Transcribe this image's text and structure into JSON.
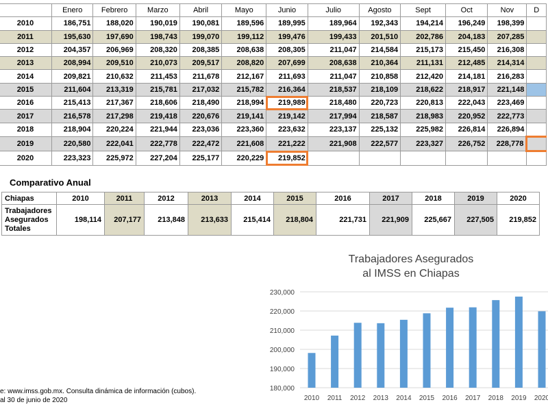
{
  "monthly": {
    "header": [
      "",
      "Enero",
      "Febrero",
      "Marzo",
      "Abril",
      "Mayo",
      "Junio",
      "Julio",
      "Agosto",
      "Sept",
      "Oct",
      "Nov",
      "D"
    ],
    "rows": [
      {
        "year": "2010",
        "values": [
          "186,751",
          "188,020",
          "190,019",
          "190,081",
          "189,596",
          "189,995",
          "189,964",
          "192,343",
          "194,214",
          "196,249",
          "198,399",
          ""
        ]
      },
      {
        "year": "2011",
        "values": [
          "195,630",
          "197,690",
          "198,743",
          "199,070",
          "199,112",
          "199,476",
          "199,433",
          "201,510",
          "202,786",
          "204,183",
          "207,285",
          ""
        ]
      },
      {
        "year": "2012",
        "values": [
          "204,357",
          "206,969",
          "208,320",
          "208,385",
          "208,638",
          "208,305",
          "211,047",
          "214,584",
          "215,173",
          "215,450",
          "216,308",
          ""
        ]
      },
      {
        "year": "2013",
        "values": [
          "208,994",
          "209,510",
          "210,073",
          "209,517",
          "208,820",
          "207,699",
          "208,638",
          "210,364",
          "211,131",
          "212,485",
          "214,314",
          ""
        ]
      },
      {
        "year": "2014",
        "values": [
          "209,821",
          "210,632",
          "211,453",
          "211,678",
          "212,167",
          "211,693",
          "211,047",
          "210,858",
          "212,420",
          "214,181",
          "216,283",
          ""
        ]
      },
      {
        "year": "2015",
        "values": [
          "211,604",
          "213,319",
          "215,781",
          "217,032",
          "215,782",
          "216,364",
          "218,537",
          "218,109",
          "218,622",
          "218,917",
          "221,148",
          ""
        ]
      },
      {
        "year": "2016",
        "values": [
          "215,413",
          "217,367",
          "218,606",
          "218,490",
          "218,994",
          "219,989",
          "218,480",
          "220,723",
          "220,813",
          "222,043",
          "223,469",
          ""
        ]
      },
      {
        "year": "2017",
        "values": [
          "216,578",
          "217,298",
          "219,418",
          "220,676",
          "219,141",
          "219,142",
          "217,994",
          "218,587",
          "218,983",
          "220,952",
          "222,773",
          ""
        ]
      },
      {
        "year": "2018",
        "values": [
          "218,904",
          "220,224",
          "221,944",
          "223,036",
          "223,360",
          "223,632",
          "223,137",
          "225,132",
          "225,982",
          "226,814",
          "226,894",
          ""
        ]
      },
      {
        "year": "2019",
        "values": [
          "220,580",
          "222,041",
          "222,778",
          "222,472",
          "221,608",
          "221,222",
          "221,908",
          "222,577",
          "223,327",
          "226,752",
          "228,778",
          ""
        ]
      },
      {
        "year": "2020",
        "values": [
          "223,323",
          "225,972",
          "227,204",
          "225,177",
          "220,229",
          "219,852",
          "",
          "",
          "",
          "",
          "",
          ""
        ]
      }
    ]
  },
  "comparativo": {
    "title": "Comparativo Anual",
    "row_header": "Chiapas",
    "years": [
      "2010",
      "2011",
      "2012",
      "2013",
      "2014",
      "2015",
      "2016",
      "2017",
      "2018",
      "2019",
      "2020"
    ],
    "label": "Trabajadores Asegurados Totales",
    "values": [
      "198,114",
      "207,177",
      "213,848",
      "213,633",
      "215,414",
      "218,804",
      "221,731",
      "221,909",
      "225,667",
      "227,505",
      "219,852"
    ]
  },
  "source": {
    "line1": "e: www.imss.gob.mx. Consulta dinámica de información (cubos).",
    "line2": "al 30 de junio de 2020"
  },
  "colors": {
    "bar": "#5b9bd5",
    "highlight": "#ee7d31",
    "tan": "#dedbc6",
    "gray": "#d9d9d9"
  },
  "chart_data": {
    "type": "bar",
    "title": "Trabajadores Asegurados al IMSS en Chiapas",
    "categories": [
      "2010",
      "2011",
      "2012",
      "2013",
      "2014",
      "2015",
      "2016",
      "2017",
      "2018",
      "2019",
      "2020"
    ],
    "values": [
      198114,
      207177,
      213848,
      213633,
      215414,
      218804,
      221731,
      221909,
      225667,
      227505,
      219852
    ],
    "ylim": [
      180000,
      230000
    ],
    "yticks": [
      "180,000",
      "190,000",
      "200,000",
      "210,000",
      "220,000",
      "230,000"
    ],
    "grid": true
  }
}
